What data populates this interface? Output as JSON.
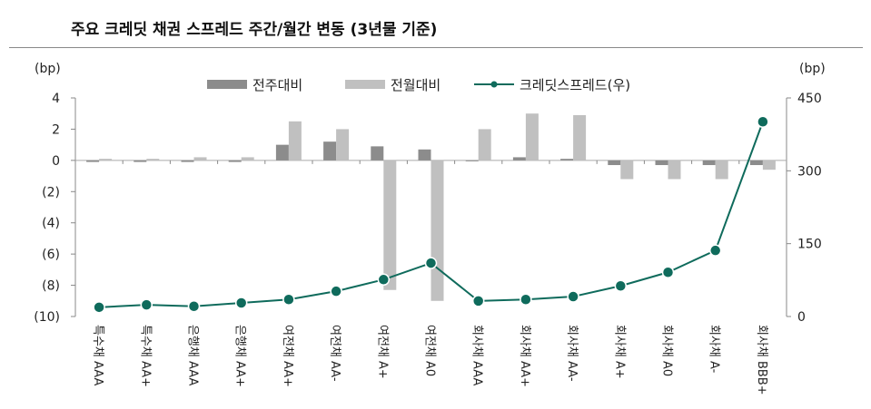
{
  "chart_data": {
    "type": "bar+line",
    "title": "주요 크레딧 채권 스프레드 주간/월간 변동 (3년물 기준)",
    "ylabel_left": "(bp)",
    "ylabel_right": "(bp)",
    "ylim_left": [
      -10,
      4
    ],
    "yticks_left": [
      "4",
      "2",
      "0",
      "(2)",
      "(4)",
      "(6)",
      "(8)",
      "(10)"
    ],
    "ylim_right": [
      0,
      450
    ],
    "yticks_right": [
      "450",
      "300",
      "150",
      "0"
    ],
    "categories": [
      "특수채 AAA",
      "특수채 AA+",
      "은행채 AAA",
      "은행채 AA+",
      "여전채 AA+",
      "여전채 AA-",
      "여전채 A+",
      "여전채 A0",
      "회사채 AAA",
      "회사채 AA+",
      "회사채 AA-",
      "회사채 A+",
      "회사채 A0",
      "회사채 A-",
      "회사채 BBB+"
    ],
    "legend_position": "top",
    "series": [
      {
        "name": "전주대비",
        "type": "bar",
        "axis": "left",
        "color": "#8c8c8c",
        "values": [
          -0.1,
          -0.1,
          -0.1,
          -0.1,
          1.0,
          1.2,
          0.9,
          0.7,
          0.0,
          0.2,
          0.1,
          -0.3,
          -0.3,
          -0.3,
          -0.3
        ]
      },
      {
        "name": "전월대비",
        "type": "bar",
        "axis": "left",
        "color": "#c0c0c0",
        "values": [
          0.1,
          0.1,
          0.2,
          0.2,
          2.5,
          2.0,
          -8.3,
          -9.0,
          2.0,
          3.0,
          2.9,
          -1.2,
          -1.2,
          -1.2,
          -0.6
        ]
      },
      {
        "name": "크레딧스프레드(우)",
        "type": "line",
        "axis": "right",
        "color": "#0f6b5c",
        "values": [
          19,
          24,
          21,
          28,
          35,
          52,
          76,
          110,
          32,
          35,
          41,
          63,
          91,
          136,
          401
        ]
      }
    ]
  }
}
